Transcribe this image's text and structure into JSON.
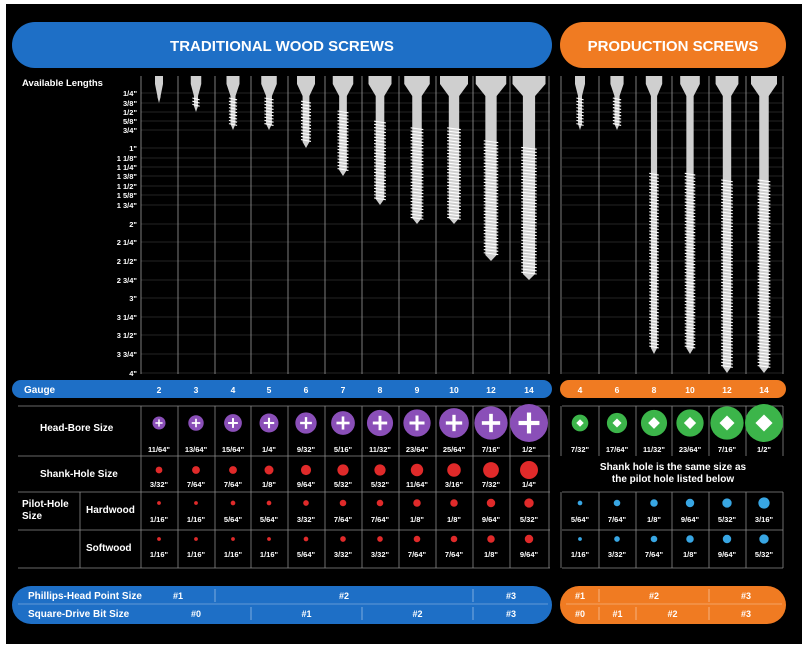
{
  "header": {
    "traditional_title": "TRADITIONAL WOOD SCREWS",
    "production_title": "PRODUCTION SCREWS"
  },
  "colors": {
    "background": "#000000",
    "traditional_blue": "#1e6fc6",
    "production_orange": "#f07b22",
    "purple": "#8a4fb8",
    "green": "#3cb54a",
    "red": "#e02a2a",
    "light_blue": "#38a6e3"
  },
  "lengths": {
    "label": "Available Lengths",
    "ticks": [
      "1/4\"",
      "3/8\"",
      "1/2\"",
      "5/8\"",
      "3/4\"",
      "1\"",
      "1 1/8\"",
      "1 1/4\"",
      "1 3/8\"",
      "1 1/2\"",
      "1 5/8\"",
      "1 3/4\"",
      "2\"",
      "2 1/4\"",
      "2 1/2\"",
      "2 3/4\"",
      "3\"",
      "3 1/4\"",
      "3 1/2\"",
      "3 3/4\"",
      "4\""
    ]
  },
  "chart_data": {
    "type": "table",
    "traditional_screws": [
      {
        "gauge": "2",
        "max_length_in": 0.375
      },
      {
        "gauge": "3",
        "max_length_in": 0.5
      },
      {
        "gauge": "4",
        "max_length_in": 0.75
      },
      {
        "gauge": "5",
        "max_length_in": 0.75
      },
      {
        "gauge": "6",
        "max_length_in": 1.0
      },
      {
        "gauge": "7",
        "max_length_in": 1.375
      },
      {
        "gauge": "8",
        "max_length_in": 1.75
      },
      {
        "gauge": "9",
        "max_length_in": 2.0
      },
      {
        "gauge": "10",
        "max_length_in": 2.0
      },
      {
        "gauge": "12",
        "max_length_in": 2.5
      },
      {
        "gauge": "14",
        "max_length_in": 2.75
      }
    ],
    "production_screws": [
      {
        "gauge": "4",
        "max_length_in": 0.75
      },
      {
        "gauge": "6",
        "max_length_in": 0.75
      },
      {
        "gauge": "8",
        "max_length_in": 3.75
      },
      {
        "gauge": "10",
        "max_length_in": 3.75
      },
      {
        "gauge": "12",
        "max_length_in": 4.0
      },
      {
        "gauge": "14",
        "max_length_in": 4.0
      }
    ]
  },
  "rows": {
    "gauge_label": "Gauge",
    "head_bore_label": "Head-Bore Size",
    "shank_hole_label": "Shank-Hole Size",
    "pilot_hole_label": "Pilot-Hole\nSize",
    "hardwood_label": "Hardwood",
    "softwood_label": "Softwood",
    "shank_note_line1": "Shank hole is the same size as",
    "shank_note_line2": "the pilot hole listed below"
  },
  "traditional": {
    "gauges": [
      "2",
      "3",
      "4",
      "5",
      "6",
      "7",
      "8",
      "9",
      "10",
      "12",
      "14"
    ],
    "head_bore": [
      "11/64\"",
      "13/64\"",
      "15/64\"",
      "1/4\"",
      "9/32\"",
      "5/16\"",
      "11/32\"",
      "23/64\"",
      "25/64\"",
      "7/16\"",
      "1/2\""
    ],
    "head_bore_frac": [
      0.172,
      0.203,
      0.234,
      0.25,
      0.281,
      0.313,
      0.344,
      0.359,
      0.391,
      0.438,
      0.5
    ],
    "shank_hole": [
      "3/32\"",
      "7/64\"",
      "7/64\"",
      "1/8\"",
      "9/64\"",
      "5/32\"",
      "5/32\"",
      "11/64\"",
      "3/16\"",
      "7/32\"",
      "1/4\""
    ],
    "shank_hole_frac": [
      0.094,
      0.109,
      0.109,
      0.125,
      0.141,
      0.156,
      0.156,
      0.172,
      0.188,
      0.219,
      0.25
    ],
    "hardwood": [
      "1/16\"",
      "1/16\"",
      "5/64\"",
      "5/64\"",
      "3/32\"",
      "7/64\"",
      "7/64\"",
      "1/8\"",
      "1/8\"",
      "9/64\"",
      "5/32\""
    ],
    "hardwood_frac": [
      0.063,
      0.063,
      0.078,
      0.078,
      0.094,
      0.109,
      0.109,
      0.125,
      0.125,
      0.141,
      0.156
    ],
    "softwood": [
      "1/16\"",
      "1/16\"",
      "1/16\"",
      "1/16\"",
      "5/64\"",
      "3/32\"",
      "3/32\"",
      "7/64\"",
      "7/64\"",
      "1/8\"",
      "9/64\""
    ],
    "softwood_frac": [
      0.063,
      0.063,
      0.063,
      0.063,
      0.078,
      0.094,
      0.094,
      0.109,
      0.109,
      0.125,
      0.141
    ]
  },
  "production": {
    "gauges": [
      "4",
      "6",
      "8",
      "10",
      "12",
      "14"
    ],
    "head_bore": [
      "7/32\"",
      "17/64\"",
      "11/32\"",
      "23/64\"",
      "7/16\"",
      "1/2\""
    ],
    "head_bore_frac": [
      0.219,
      0.266,
      0.344,
      0.359,
      0.438,
      0.5
    ],
    "hardwood": [
      "5/64\"",
      "7/64\"",
      "1/8\"",
      "9/64\"",
      "5/32\"",
      "3/16\""
    ],
    "hardwood_frac": [
      0.078,
      0.109,
      0.125,
      0.141,
      0.156,
      0.188
    ],
    "softwood": [
      "1/16\"",
      "3/32\"",
      "7/64\"",
      "1/8\"",
      "9/64\"",
      "5/32\""
    ],
    "softwood_frac": [
      0.063,
      0.094,
      0.109,
      0.125,
      0.141,
      0.156
    ]
  },
  "bits": {
    "phillips_label": "Phillips-Head Point Size",
    "square_label": "Square-Drive Bit Size",
    "traditional_phillips": [
      {
        "label": "#1",
        "start": 0,
        "end": 2
      },
      {
        "label": "#2",
        "start": 2,
        "end": 9
      },
      {
        "label": "#3",
        "start": 9,
        "end": 11
      }
    ],
    "traditional_square": [
      {
        "label": "#0",
        "start": 0,
        "end": 3
      },
      {
        "label": "#1",
        "start": 3,
        "end": 6
      },
      {
        "label": "#2",
        "start": 6,
        "end": 9
      },
      {
        "label": "#3",
        "start": 9,
        "end": 11
      }
    ],
    "production_phillips": [
      {
        "label": "#1",
        "start": 0,
        "end": 1
      },
      {
        "label": "#2",
        "start": 1,
        "end": 4
      },
      {
        "label": "#3",
        "start": 4,
        "end": 6
      }
    ],
    "production_square": [
      {
        "label": "#0",
        "start": 0,
        "end": 1
      },
      {
        "label": "#1",
        "start": 1,
        "end": 2
      },
      {
        "label": "#2",
        "start": 2,
        "end": 4
      },
      {
        "label": "#3",
        "start": 4,
        "end": 6
      }
    ]
  }
}
